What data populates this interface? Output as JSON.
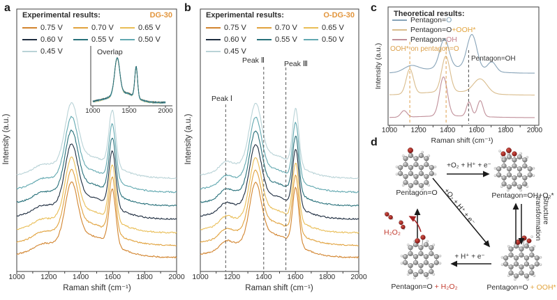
{
  "panel_a": {
    "label": "a",
    "legend_title": "Experimental results:",
    "sample": "DG-30",
    "sample_color": "#e2953c",
    "inset_title": "Overlap",
    "inset_xticks": [
      "1000",
      "1500",
      "2000"
    ],
    "xlabel": "Raman shift (cm⁻¹)",
    "ylabel": "Intensity (a.u.)",
    "xticks": [
      "1000",
      "1200",
      "1400",
      "1600",
      "1800",
      "2000"
    ]
  },
  "panel_b": {
    "label": "b",
    "legend_title": "Experimental results:",
    "sample": "O-DG-30",
    "sample_color": "#e2953c",
    "xlabel": "Raman shift (cm⁻¹)",
    "ylabel": "Intensity (a.u.)",
    "xticks": [
      "1000",
      "1200",
      "1400",
      "1600",
      "1800",
      "2000"
    ]
  },
  "panel_c": {
    "label": "c",
    "legend_title": "Theoretical results:",
    "legend_items": [
      {
        "line_color": "#87a3b8",
        "parts": [
          {
            "text": "Pentagon=",
            "color": "#2b2b2b"
          },
          {
            "text": "O",
            "color": "#7ba1b8"
          }
        ]
      },
      {
        "line_color": "#d9bc8c",
        "parts": [
          {
            "text": "Pentagon=O",
            "color": "#2b2b2b"
          },
          {
            "text": "+OOH*",
            "color": "#e2a33c"
          }
        ]
      },
      {
        "line_color": "#c08f99",
        "parts": [
          {
            "text": "Pentagon=",
            "color": "#2b2b2b"
          },
          {
            "text": "OH",
            "color": "#c4808d"
          }
        ]
      }
    ],
    "annotations": [
      {
        "text": "OOH* on pentagon=O",
        "color": "#dca04a"
      },
      {
        "text": "Pentagon=OH",
        "color": "#333333"
      }
    ],
    "xlabel": "Raman shift (cm⁻¹)",
    "ylabel": "Intensity (a.u.)",
    "xticks": [
      "1000",
      "1200",
      "1400",
      "1600",
      "1800",
      "2000"
    ]
  },
  "panel_d": {
    "label": "d",
    "molecules": [
      {
        "id": "top-left",
        "variant": "O",
        "caption": [
          {
            "text": "Pentagon=O",
            "color": "#2b2b2b"
          }
        ]
      },
      {
        "id": "top-right",
        "variant": "OH_O2",
        "caption": [
          {
            "text": "Pentagon=OH+O₂*",
            "color": "#2b2b2b"
          }
        ]
      },
      {
        "id": "bottom-left",
        "variant": "O_pair",
        "caption": [
          {
            "text": "Pentagon=O ",
            "color": "#2b2b2b"
          },
          {
            "text": "+ H₂O₂",
            "color": "#c23b2e"
          }
        ]
      },
      {
        "id": "bottom-right",
        "variant": "O_OOH",
        "caption": [
          {
            "text": "Pentagon=O ",
            "color": "#2b2b2b"
          },
          {
            "text": "+ OOH*",
            "color": "#e2a33c"
          }
        ]
      }
    ],
    "arrow_labels": {
      "top": "+O₂ + H⁺ + e⁻",
      "diagonal": "+O₂ + H⁺ + e⁻",
      "bottom": "+ H⁺ + e⁻",
      "right": "Structure transformation",
      "h2o2": "H₂O₂"
    },
    "h2o2_color": "#c23b2e"
  },
  "chart_data": [
    {
      "type": "line",
      "panel": "a",
      "title": "Experimental results: DG-30",
      "xlabel": "Raman shift (cm⁻¹)",
      "ylabel": "Intensity (a.u.)",
      "x_range": [
        1000,
        2000
      ],
      "x_ticks": [
        1000,
        1200,
        1400,
        1600,
        1800,
        2000
      ],
      "y_axis": "arbitrary units, curves stacked by potential",
      "peak_positions_cm1": {
        "D_band": 1342,
        "G_band": 1598
      },
      "series": [
        {
          "name": "0.75 V",
          "color": "#d2842e",
          "offset": 0.947,
          "peaks": [
            [
              1342,
              55,
              0.21
            ],
            [
              1598,
              30,
              0.21
            ],
            [
              1445,
              210,
              0.055
            ],
            [
              1150,
              70,
              0.018
            ],
            [
              1330,
              330,
              0.035
            ]
          ]
        },
        {
          "name": "0.70 V",
          "color": "#e1a23d",
          "offset": 0.901,
          "peaks": [
            [
              1342,
              55,
              0.21
            ],
            [
              1598,
              30,
              0.21
            ],
            [
              1445,
              210,
              0.055
            ],
            [
              1150,
              70,
              0.018
            ],
            [
              1330,
              330,
              0.035
            ]
          ]
        },
        {
          "name": "0.65 V",
          "color": "#e9bd55",
          "offset": 0.853,
          "peaks": [
            [
              1342,
              55,
              0.21
            ],
            [
              1598,
              30,
              0.21
            ],
            [
              1445,
              210,
              0.055
            ],
            [
              1150,
              70,
              0.018
            ],
            [
              1330,
              330,
              0.035
            ]
          ]
        },
        {
          "name": "0.60 V",
          "color": "#1d2c3f",
          "offset": 0.801,
          "peaks": [
            [
              1342,
              55,
              0.21
            ],
            [
              1598,
              30,
              0.21
            ],
            [
              1445,
              210,
              0.055
            ],
            [
              1150,
              70,
              0.018
            ],
            [
              1330,
              330,
              0.035
            ]
          ]
        },
        {
          "name": "0.55 V",
          "color": "#27707a",
          "offset": 0.75,
          "peaks": [
            [
              1342,
              55,
              0.21
            ],
            [
              1598,
              30,
              0.21
            ],
            [
              1445,
              210,
              0.055
            ],
            [
              1150,
              70,
              0.018
            ],
            [
              1330,
              330,
              0.035
            ]
          ]
        },
        {
          "name": "0.50 V",
          "color": "#61a8b0",
          "offset": 0.698,
          "peaks": [
            [
              1342,
              55,
              0.21
            ],
            [
              1598,
              30,
              0.21
            ],
            [
              1445,
              210,
              0.055
            ],
            [
              1150,
              70,
              0.018
            ],
            [
              1330,
              330,
              0.035
            ]
          ]
        },
        {
          "name": "0.45 V",
          "color": "#b9d3d7",
          "offset": 0.645,
          "peaks": [
            [
              1342,
              55,
              0.21
            ],
            [
              1598,
              30,
              0.21
            ],
            [
              1445,
              210,
              0.055
            ],
            [
              1150,
              70,
              0.018
            ],
            [
              1330,
              330,
              0.035
            ]
          ]
        }
      ],
      "inset": {
        "title": "Overlap",
        "x_ticks": [
          1000,
          1500,
          2000
        ],
        "note": "all seven potentials overlaid"
      }
    },
    {
      "type": "line",
      "panel": "b",
      "title": "Experimental results: O-DG-30",
      "xlabel": "Raman shift (cm⁻¹)",
      "ylabel": "Intensity (a.u.)",
      "x_range": [
        1000,
        2000
      ],
      "x_ticks": [
        1000,
        1200,
        1400,
        1600,
        1800,
        2000
      ],
      "dashed_lines": [
        {
          "x": 1160,
          "label": "Peak Ⅰ",
          "color": "#555555"
        },
        {
          "x": 1400,
          "label": "Peak Ⅱ",
          "color": "#555555"
        },
        {
          "x": 1540,
          "label": "Peak Ⅲ",
          "color": "#555555"
        }
      ],
      "series": [
        {
          "name": "0.75 V",
          "color": "#d2842e",
          "offset": 0.947,
          "peaks": [
            [
              1348,
              52,
              0.205
            ],
            [
              1602,
              28,
              0.215
            ],
            [
              1450,
              200,
              0.06
            ],
            [
              1160,
              55,
              0.03
            ],
            [
              1330,
              330,
              0.035
            ]
          ]
        },
        {
          "name": "0.70 V",
          "color": "#e1a23d",
          "offset": 0.901,
          "peaks": [
            [
              1348,
              52,
              0.205
            ],
            [
              1602,
              28,
              0.215
            ],
            [
              1450,
              200,
              0.06
            ],
            [
              1160,
              55,
              0.03
            ],
            [
              1330,
              330,
              0.035
            ]
          ]
        },
        {
          "name": "0.65 V",
          "color": "#e9bd55",
          "offset": 0.853,
          "peaks": [
            [
              1348,
              52,
              0.205
            ],
            [
              1602,
              28,
              0.215
            ],
            [
              1450,
              200,
              0.06
            ],
            [
              1160,
              55,
              0.03
            ],
            [
              1330,
              330,
              0.035
            ]
          ]
        },
        {
          "name": "0.60 V",
          "color": "#1d2c3f",
          "offset": 0.801,
          "peaks": [
            [
              1348,
              52,
              0.205
            ],
            [
              1602,
              28,
              0.215
            ],
            [
              1450,
              200,
              0.06
            ],
            [
              1160,
              55,
              0.03
            ],
            [
              1330,
              330,
              0.035
            ]
          ]
        },
        {
          "name": "0.55 V",
          "color": "#27707a",
          "offset": 0.75,
          "peaks": [
            [
              1348,
              52,
              0.205
            ],
            [
              1602,
              28,
              0.215
            ],
            [
              1450,
              200,
              0.06
            ],
            [
              1160,
              55,
              0.03
            ],
            [
              1330,
              330,
              0.035
            ]
          ]
        },
        {
          "name": "0.50 V",
          "color": "#61a8b0",
          "offset": 0.698,
          "peaks": [
            [
              1348,
              52,
              0.205
            ],
            [
              1602,
              28,
              0.215
            ],
            [
              1450,
              200,
              0.06
            ],
            [
              1160,
              55,
              0.03
            ],
            [
              1330,
              330,
              0.035
            ]
          ]
        },
        {
          "name": "0.45 V",
          "color": "#b9d3d7",
          "offset": 0.645,
          "peaks": [
            [
              1348,
              52,
              0.205
            ],
            [
              1602,
              28,
              0.215
            ],
            [
              1450,
              200,
              0.06
            ],
            [
              1160,
              55,
              0.03
            ],
            [
              1330,
              330,
              0.035
            ]
          ]
        }
      ]
    },
    {
      "type": "line",
      "panel": "c",
      "title": "Theoretical results",
      "xlabel": "Raman shift (cm⁻¹)",
      "ylabel": "Intensity (a.u.)",
      "x_range": [
        1000,
        2000
      ],
      "x_ticks": [
        1000,
        1200,
        1400,
        1600,
        1800,
        2000
      ],
      "dashed_lines": [
        {
          "x": 1140,
          "color": "#dfa04b"
        },
        {
          "x": 1390,
          "color": "#dfa04b"
        },
        {
          "x": 1545,
          "color": "#4a4a4a"
        }
      ],
      "series": [
        {
          "name": "Pentagon=O",
          "color": "#87a3b8",
          "offset": 0.56,
          "peaks": [
            [
              1150,
              70,
              0.05
            ],
            [
              1378,
              45,
              0.24
            ],
            [
              1568,
              48,
              0.29
            ],
            [
              1705,
              40,
              0.08
            ],
            [
              1430,
              260,
              0.05
            ]
          ]
        },
        {
          "name": "Pentagon=O+OOH*",
          "color": "#d9bc8c",
          "offset": 0.745,
          "peaks": [
            [
              1140,
              35,
              0.21
            ],
            [
              1388,
              40,
              0.3
            ],
            [
              1625,
              65,
              0.12
            ],
            [
              1420,
              280,
              0.03
            ]
          ]
        },
        {
          "name": "Pentagon=OH",
          "color": "#c08f99",
          "offset": 0.935,
          "peaks": [
            [
              1100,
              30,
              0.055
            ],
            [
              1372,
              38,
              0.33
            ],
            [
              1548,
              25,
              0.12
            ],
            [
              1625,
              27,
              0.135
            ],
            [
              1420,
              280,
              0.015
            ]
          ]
        }
      ]
    }
  ]
}
